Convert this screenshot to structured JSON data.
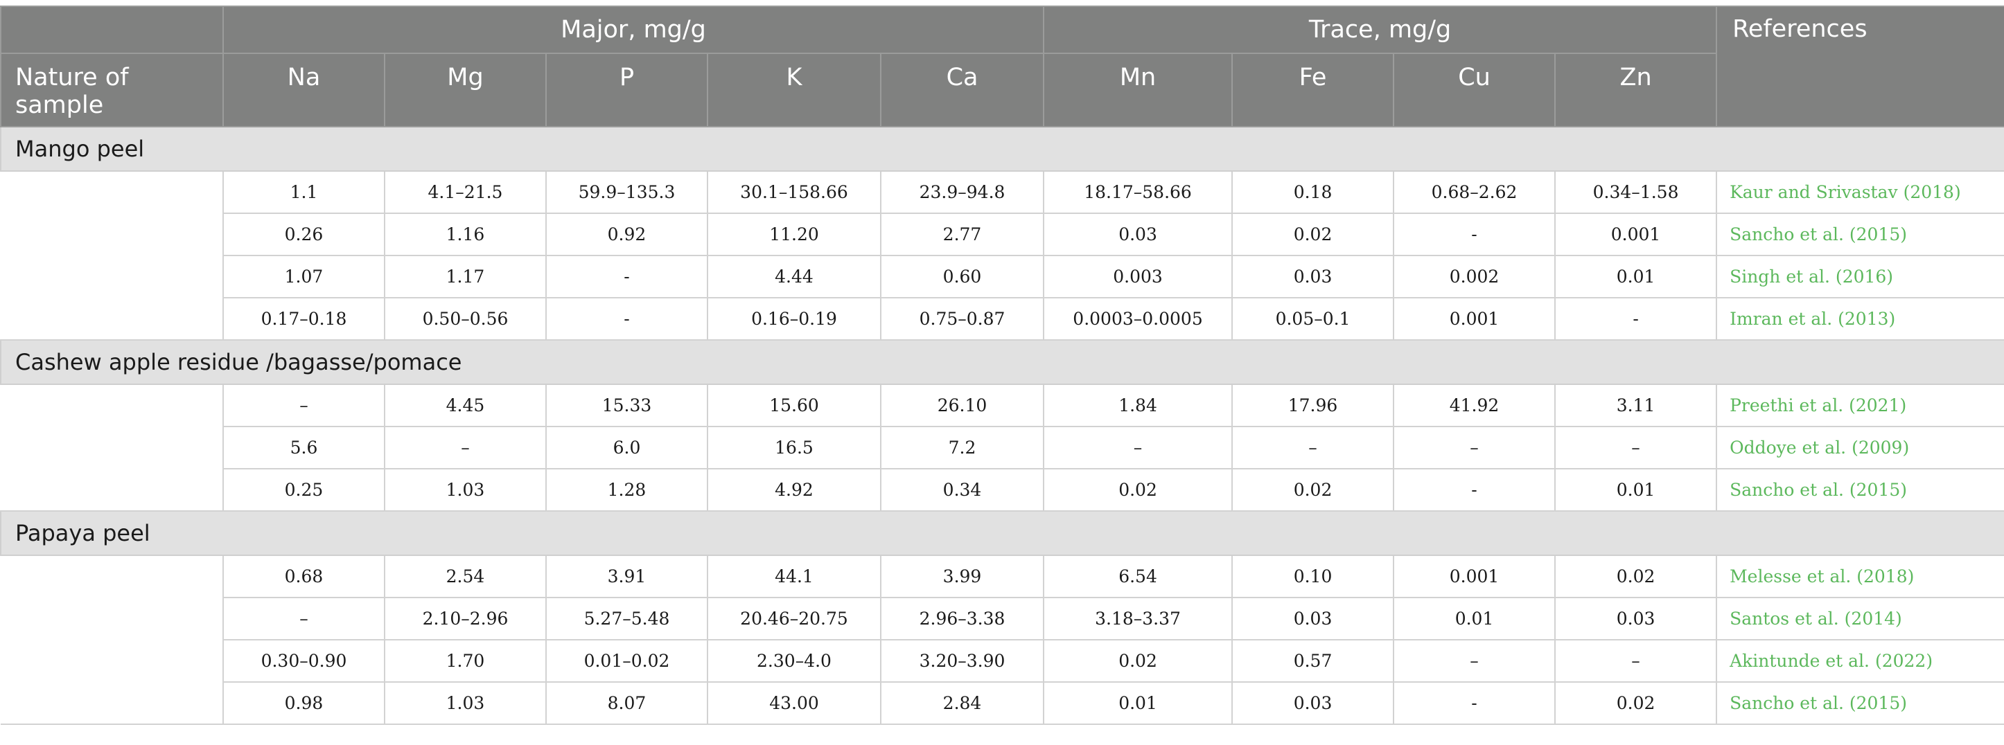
{
  "header": {
    "major": "Major, mg/g",
    "trace": "Trace, mg/g",
    "references": "References",
    "nature": "Nature of sample",
    "cols": [
      "Na",
      "Mg",
      "P",
      "K",
      "Ca",
      "Mn",
      "Fe",
      "Cu",
      "Zn"
    ]
  },
  "groups": [
    {
      "title": "Mango peel",
      "rows": [
        {
          "values": [
            "1.1",
            "4.1–21.5",
            "59.9–135.3",
            "30.1–158.66",
            "23.9–94.8",
            "18.17–58.66",
            "0.18",
            "0.68–2.62",
            "0.34–1.58"
          ],
          "ref": "Kaur and Srivastav (2018)"
        },
        {
          "values": [
            "0.26",
            "1.16",
            "0.92",
            "11.20",
            "2.77",
            "0.03",
            "0.02",
            "-",
            "0.001"
          ],
          "ref": "Sancho et al. (2015)"
        },
        {
          "values": [
            "1.07",
            "1.17",
            "-",
            "4.44",
            "0.60",
            "0.003",
            "0.03",
            "0.002",
            "0.01"
          ],
          "ref": "Singh et al. (2016)"
        },
        {
          "values": [
            "0.17–0.18",
            "0.50–0.56",
            "-",
            "0.16–0.19",
            "0.75–0.87",
            "0.0003–0.0005",
            "0.05–0.1",
            "0.001",
            "-"
          ],
          "ref": "Imran et al. (2013)"
        }
      ]
    },
    {
      "title": "Cashew apple residue /bagasse/pomace",
      "rows": [
        {
          "values": [
            "–",
            "4.45",
            "15.33",
            "15.60",
            "26.10",
            "1.84",
            "17.96",
            "41.92",
            "3.11"
          ],
          "ref": "Preethi et al. (2021)"
        },
        {
          "values": [
            "5.6",
            "–",
            "6.0",
            "16.5",
            "7.2",
            "–",
            "–",
            "–",
            "–"
          ],
          "ref": "Oddoye et al. (2009)"
        },
        {
          "values": [
            "0.25",
            "1.03",
            "1.28",
            "4.92",
            "0.34",
            "0.02",
            "0.02",
            "-",
            "0.01"
          ],
          "ref": "Sancho et al. (2015)"
        }
      ]
    },
    {
      "title": "Papaya peel",
      "rows": [
        {
          "values": [
            "0.68",
            "2.54",
            "3.91",
            "44.1",
            "3.99",
            "6.54",
            "0.10",
            "0.001",
            "0.02"
          ],
          "ref": "Melesse et al. (2018)"
        },
        {
          "values": [
            "–",
            "2.10–2.96",
            "5.27–5.48",
            "20.46–20.75",
            "2.96–3.38",
            "3.18–3.37",
            "0.03",
            "0.01",
            "0.03"
          ],
          "ref": "Santos et al. (2014)"
        },
        {
          "values": [
            "0.30–0.90",
            "1.70",
            "0.01–0.02",
            "2.30–4.0",
            "3.20–3.90",
            "0.02",
            "0.57",
            "–",
            "–"
          ],
          "ref": "Akintunde et al. (2022)"
        },
        {
          "values": [
            "0.98",
            "1.03",
            "8.07",
            "43.00",
            "2.84",
            "0.01",
            "0.03",
            "-",
            "0.02"
          ],
          "ref": "Sancho et al. (2015)"
        }
      ]
    }
  ]
}
